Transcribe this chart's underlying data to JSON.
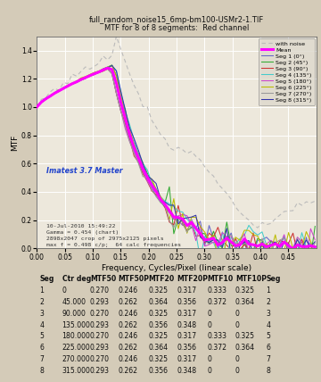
{
  "title1": "full_random_noise15_6mp-bm100-USMr2-1.TIF",
  "title2": "MTF for 8 of 8 segments:  Red channel",
  "xlabel": "Frequency, Cycles/Pixel (linear scale)",
  "ylabel": "MTF",
  "annotation_bold": "Imatest 3.7 Master",
  "annotation_text": "10-Jul-2010 15:49:22\nGamma = 0.454 (chart)\n2898x2047 crop of 2975x2125 pixels\nmax f = 0.498 c/p;  64 calc frequencies",
  "bg_color": "#d4cbb8",
  "plot_bg": "#ede8dc",
  "grid_color": "#ffffff",
  "legend_bg": "#ddd8cc",
  "table_header": [
    "Seg",
    "Ctr deg",
    "MTF50",
    "MTF50P",
    "MTF20",
    "MTF20P",
    "MTF10",
    "MTF10P",
    "Seg"
  ],
  "table_data": [
    [
      1,
      0,
      0.27,
      0.246,
      0.325,
      0.317,
      0.333,
      0.325,
      1
    ],
    [
      2,
      45,
      0.293,
      0.262,
      0.364,
      0.356,
      0.372,
      0.364,
      2
    ],
    [
      3,
      90,
      0.27,
      0.246,
      0.325,
      0.317,
      0,
      0,
      3
    ],
    [
      4,
      135,
      0.293,
      0.262,
      0.356,
      0.348,
      0,
      0,
      4
    ],
    [
      5,
      180,
      0.27,
      0.246,
      0.325,
      0.317,
      0.333,
      0.325,
      5
    ],
    [
      6,
      225,
      0.293,
      0.262,
      0.364,
      0.356,
      0.372,
      0.364,
      6
    ],
    [
      7,
      270,
      0.27,
      0.246,
      0.325,
      0.317,
      0,
      0,
      7
    ],
    [
      8,
      315,
      0.293,
      0.262,
      0.356,
      0.348,
      0,
      0,
      8
    ]
  ],
  "seg_colors": [
    "#6666cc",
    "#33aa33",
    "#cc3333",
    "#44cccc",
    "#cc44cc",
    "#bbbb00",
    "#999999",
    "#3333aa"
  ],
  "mean_color": "#ff00ff",
  "noise_color": "#aaaaaa",
  "ylim": [
    0,
    1.5
  ],
  "xlim": [
    0,
    0.5
  ],
  "xticks": [
    0,
    0.05,
    0.1,
    0.15,
    0.2,
    0.25,
    0.3,
    0.35,
    0.4,
    0.45
  ],
  "yticks": [
    0,
    0.2,
    0.4,
    0.6,
    0.8,
    1.0,
    1.2,
    1.4
  ]
}
